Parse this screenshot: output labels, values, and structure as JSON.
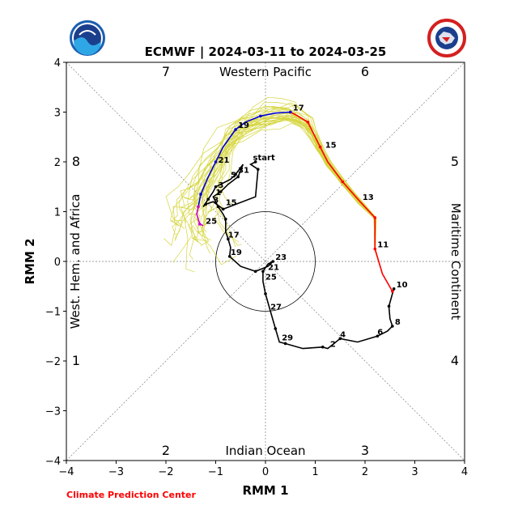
{
  "chart_data": {
    "type": "line",
    "title": "ECMWF | 2024-03-11 to 2024-03-25",
    "xlabel": "RMM 1",
    "ylabel": "RMM 2",
    "xlim": [
      -4,
      4
    ],
    "ylim": [
      -4,
      4
    ],
    "x_ticks": [
      "−4",
      "−3",
      "−2",
      "−1",
      "0",
      "1",
      "2",
      "3",
      "4"
    ],
    "y_ticks": [
      "−4",
      "−3",
      "−2",
      "−1",
      "0",
      "1",
      "2",
      "3",
      "4"
    ],
    "phase_numbers": [
      "1",
      "2",
      "3",
      "4",
      "5",
      "6",
      "7",
      "8"
    ],
    "regions": {
      "top": "Western Pacific",
      "bottom": "Indian Ocean",
      "left": "West. Hem. and Africa",
      "right": "Maritime Continent"
    },
    "credit": "Climate Prediction Center",
    "colors": {
      "observed": "#000000",
      "forecast_early": "#ff0000",
      "forecast_mid": "#0000cc",
      "forecast_late": "#cc00cc",
      "ensemble": "#c8c800"
    },
    "series": [
      {
        "key": "observed",
        "points": [
          [
            -0.2,
            2.0
          ],
          [
            -0.3,
            1.95
          ],
          [
            -0.15,
            1.85
          ],
          [
            -0.2,
            1.3
          ],
          [
            -0.85,
            1.05
          ],
          [
            -1.05,
            1.2
          ],
          [
            -1.2,
            1.15
          ],
          [
            -1.25,
            1.1
          ],
          [
            -1.15,
            1.25
          ],
          [
            -1.05,
            1.4
          ],
          [
            -1.0,
            1.5
          ],
          [
            -0.7,
            1.65
          ],
          [
            -0.6,
            1.75
          ],
          [
            -0.45,
            1.95
          ],
          [
            -0.55,
            1.7
          ],
          [
            -0.75,
            1.55
          ],
          [
            -0.9,
            1.4
          ],
          [
            -1.05,
            1.3
          ],
          [
            -0.95,
            1.1
          ],
          [
            -0.85,
            0.95
          ],
          [
            -0.8,
            0.85
          ],
          [
            -0.8,
            0.6
          ],
          [
            -0.75,
            0.45
          ],
          [
            -0.7,
            0.28
          ],
          [
            -0.72,
            0.1
          ],
          [
            -0.5,
            -0.1
          ],
          [
            -0.2,
            -0.2
          ],
          [
            0.05,
            -0.1
          ],
          [
            0.15,
            0.0
          ],
          [
            0.05,
            -0.05
          ],
          [
            -0.05,
            -0.2
          ],
          [
            -0.05,
            -0.4
          ],
          [
            0.0,
            -0.65
          ],
          [
            0.1,
            -1.0
          ],
          [
            0.2,
            -1.35
          ],
          [
            0.28,
            -1.62
          ],
          [
            0.4,
            -1.65
          ],
          [
            0.75,
            -1.75
          ],
          [
            1.15,
            -1.72
          ],
          [
            1.25,
            -1.75
          ],
          [
            1.5,
            -1.55
          ],
          [
            1.85,
            -1.62
          ],
          [
            2.25,
            -1.5
          ],
          [
            2.45,
            -1.4
          ],
          [
            2.55,
            -1.3
          ],
          [
            2.5,
            -1.15
          ],
          [
            2.48,
            -0.9
          ],
          [
            2.55,
            -0.65
          ],
          [
            2.58,
            -0.55
          ]
        ],
        "labels": [
          {
            "text": "start",
            "at": [
              -0.3,
              2.0
            ]
          },
          {
            "text": "31",
            "at": [
              -0.6,
              1.75
            ]
          },
          {
            "text": "5",
            "at": [
              -0.75,
              1.65
            ]
          },
          {
            "text": "3",
            "at": [
              -1.0,
              1.45
            ]
          },
          {
            "text": "1",
            "at": [
              -1.05,
              1.3
            ]
          },
          {
            "text": "3",
            "at": [
              -1.1,
              1.15
            ]
          },
          {
            "text": "15",
            "at": [
              -0.85,
              1.1
            ]
          },
          {
            "text": "17",
            "at": [
              -0.8,
              0.45
            ]
          },
          {
            "text": "19",
            "at": [
              -0.75,
              0.1
            ]
          },
          {
            "text": "23",
            "at": [
              0.15,
              0.0
            ]
          },
          {
            "text": "21",
            "at": [
              0.0,
              -0.2
            ]
          },
          {
            "text": "25",
            "at": [
              -0.05,
              -0.4
            ]
          },
          {
            "text": "27",
            "at": [
              0.05,
              -1.0
            ]
          },
          {
            "text": "29",
            "at": [
              0.28,
              -1.62
            ]
          },
          {
            "text": "2",
            "at": [
              1.25,
              -1.75
            ]
          },
          {
            "text": "4",
            "at": [
              1.45,
              -1.55
            ]
          },
          {
            "text": "6",
            "at": [
              2.2,
              -1.5
            ]
          },
          {
            "text": "8",
            "at": [
              2.55,
              -1.3
            ]
          },
          {
            "text": "10",
            "at": [
              2.58,
              -0.55
            ]
          }
        ]
      },
      {
        "key": "forecast_early",
        "points": [
          [
            2.55,
            -0.6
          ],
          [
            2.35,
            -0.25
          ],
          [
            2.2,
            0.25
          ],
          [
            2.2,
            0.55
          ],
          [
            2.2,
            0.88
          ],
          [
            1.9,
            1.2
          ],
          [
            1.55,
            1.6
          ],
          [
            1.25,
            2.0
          ],
          [
            1.1,
            2.3
          ],
          [
            0.95,
            2.6
          ],
          [
            0.85,
            2.8
          ],
          [
            0.6,
            2.95
          ],
          [
            0.5,
            3.0
          ]
        ],
        "labels": [
          {
            "text": "11",
            "at": [
              2.2,
              0.25
            ]
          },
          {
            "text": "13",
            "at": [
              1.9,
              1.2
            ]
          },
          {
            "text": "15",
            "at": [
              1.15,
              2.25
            ]
          },
          {
            "text": "17",
            "at": [
              0.5,
              3.0
            ]
          }
        ]
      },
      {
        "key": "forecast_mid",
        "points": [
          [
            0.5,
            3.0
          ],
          [
            0.2,
            2.98
          ],
          [
            -0.1,
            2.92
          ],
          [
            -0.4,
            2.8
          ],
          [
            -0.6,
            2.65
          ],
          [
            -0.85,
            2.3
          ],
          [
            -1.0,
            2.0
          ],
          [
            -1.15,
            1.7
          ],
          [
            -1.3,
            1.35
          ],
          [
            -1.35,
            1.1
          ]
        ],
        "labels": [
          {
            "text": "19",
            "at": [
              -0.6,
              2.65
            ]
          },
          {
            "text": "21",
            "at": [
              -1.0,
              1.95
            ]
          }
        ]
      },
      {
        "key": "forecast_late",
        "points": [
          [
            -1.35,
            1.1
          ],
          [
            -1.38,
            0.95
          ],
          [
            -1.32,
            0.75
          ],
          [
            -1.25,
            0.72
          ]
        ],
        "labels": [
          {
            "text": "25",
            "at": [
              -1.25,
              0.72
            ]
          }
        ]
      }
    ],
    "ensemble_count": 30
  }
}
